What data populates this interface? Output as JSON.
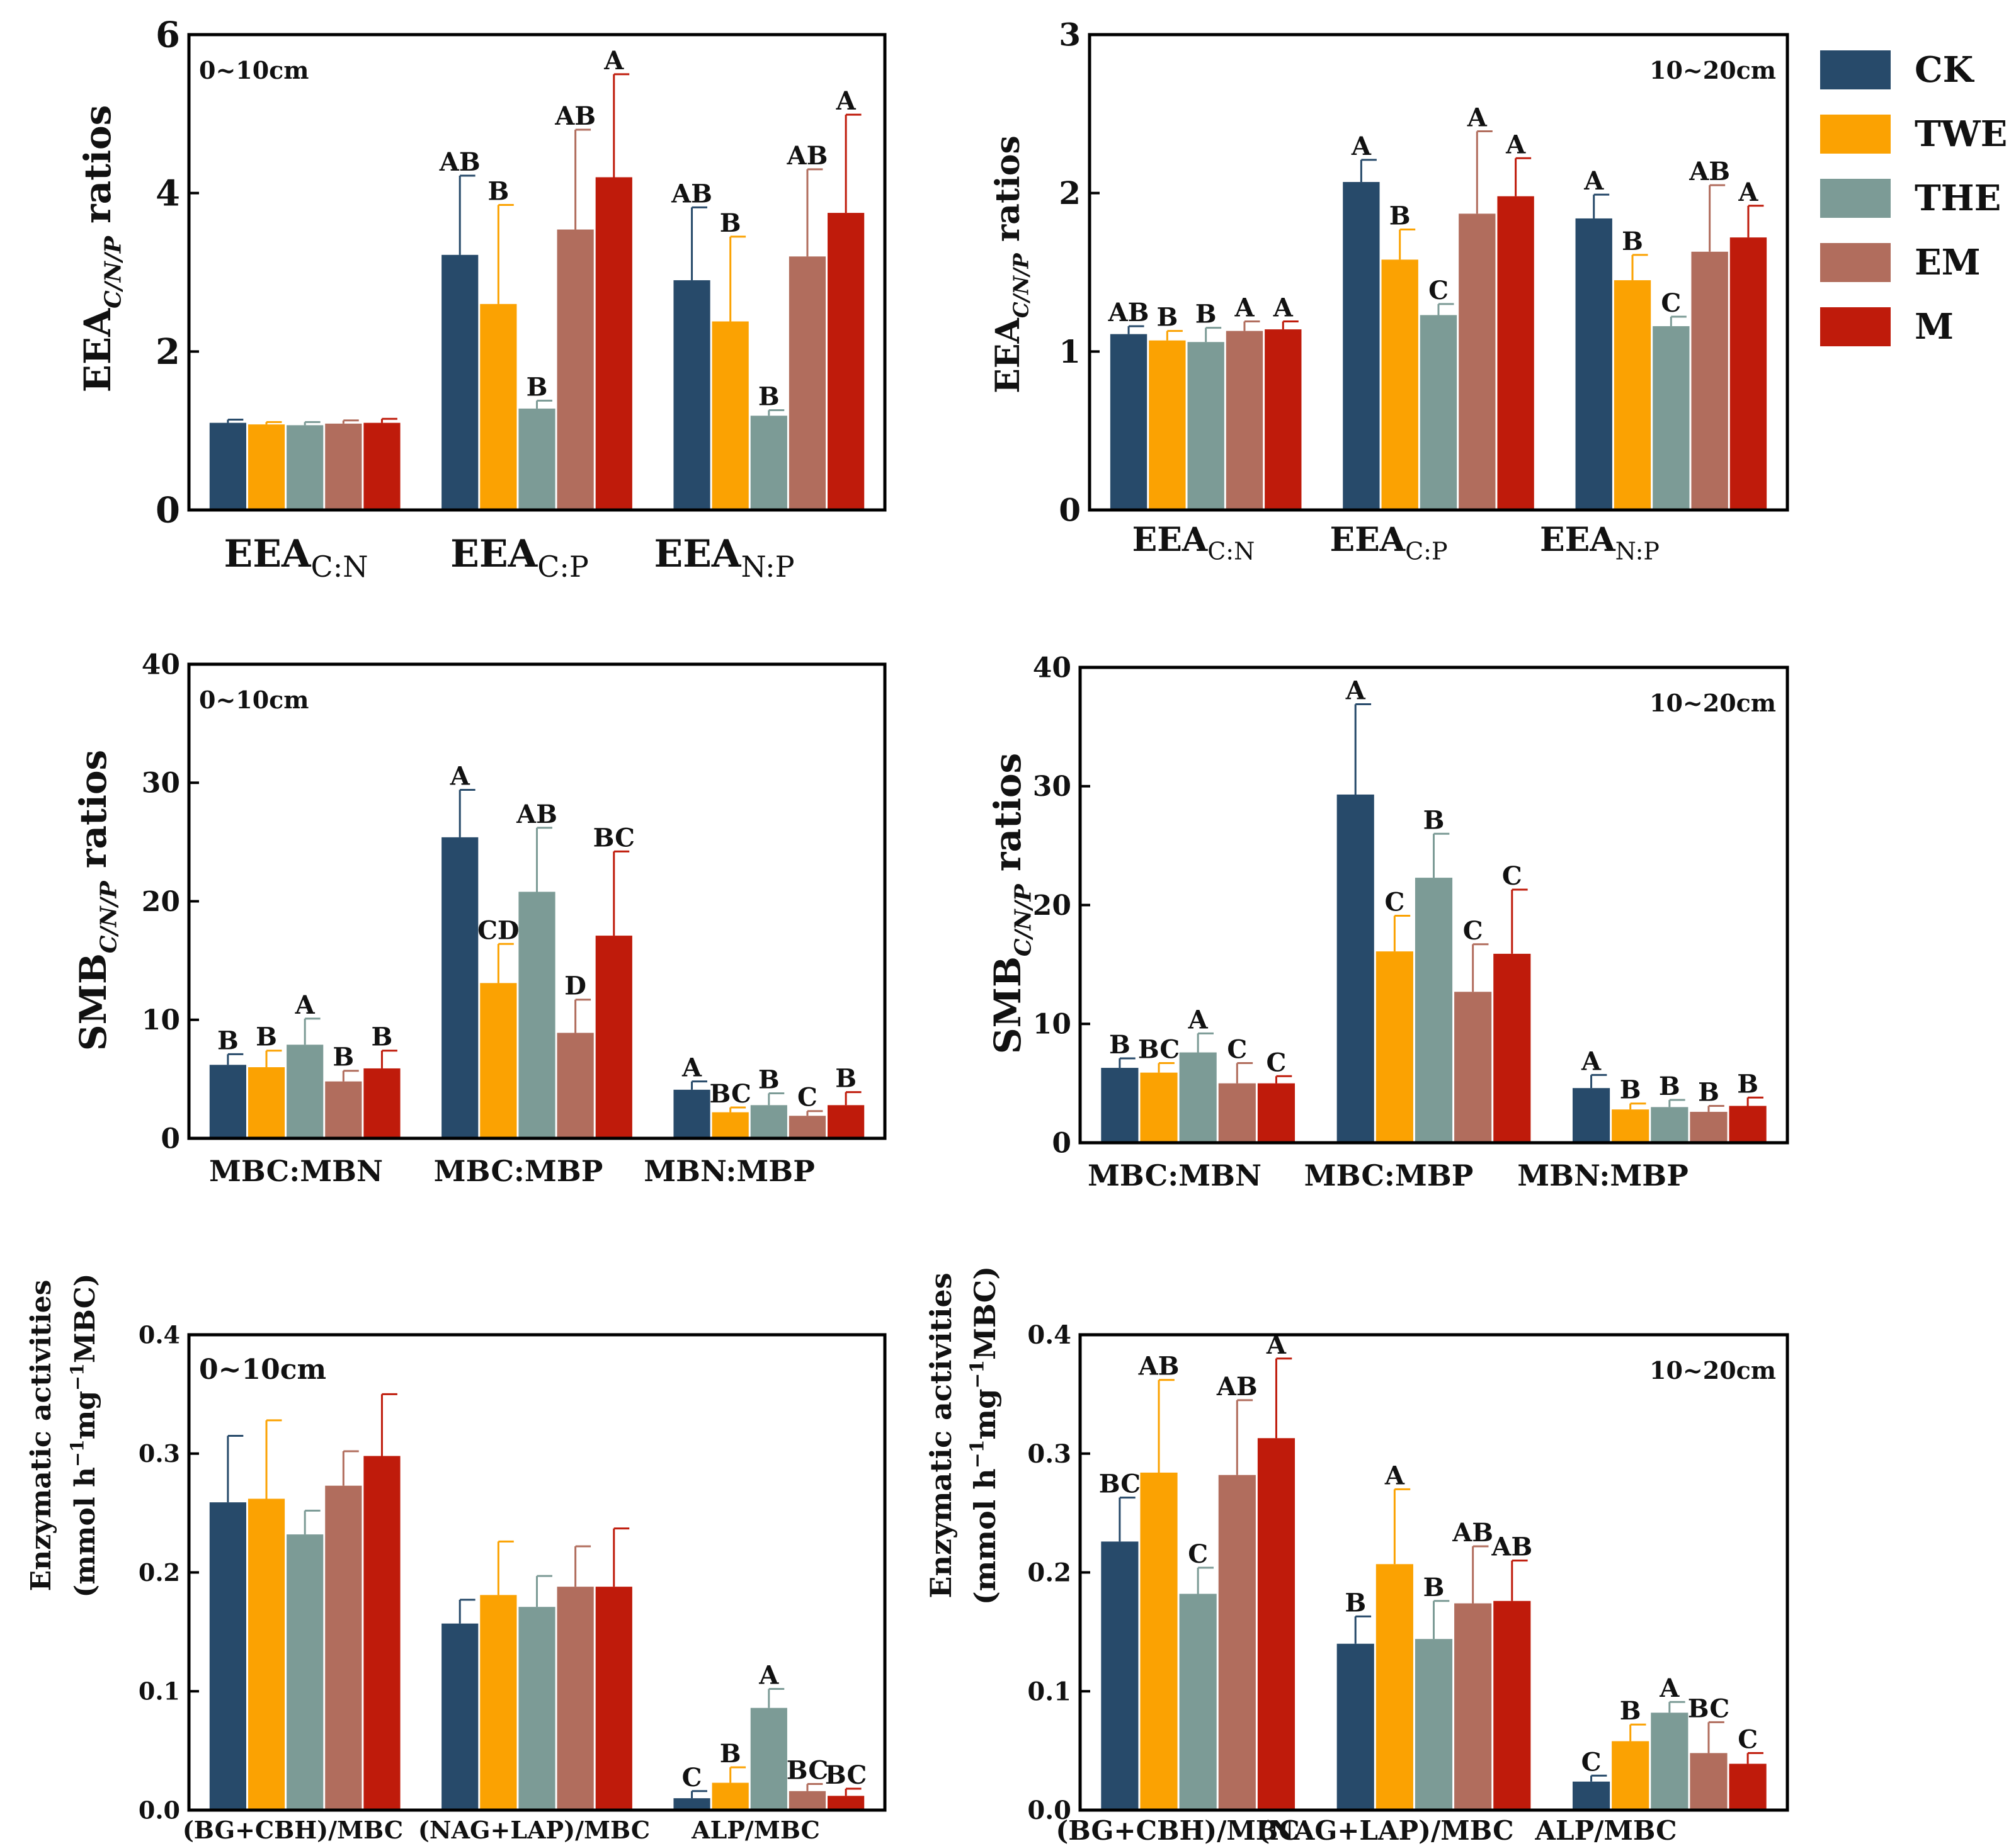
{
  "colors": [
    "#274a6a",
    "#fba202",
    "#7c9b96",
    "#b16d5d",
    "#bf1b0b"
  ],
  "legend": [
    "CK",
    "TWE",
    "THE",
    "EM",
    "M"
  ],
  "chart_data": [
    {
      "type": "bar",
      "title": "0~10cm",
      "ylim": [
        0,
        6
      ],
      "yticks": [
        0,
        2,
        4,
        6
      ],
      "ytick_labels": [
        "0",
        "2",
        "4",
        "6"
      ],
      "ylabel_main": "EEA",
      "ylabel_sub": "C/N/P",
      "ylabel_tail": " ratios",
      "categories": [
        {
          "main": "EEA",
          "sub": "C:N"
        },
        {
          "main": "EEA",
          "sub": "C:P"
        },
        {
          "main": "EEA",
          "sub": "N:P"
        }
      ],
      "series": [
        {
          "name": "CK",
          "values": [
            1.1,
            3.22,
            2.9
          ],
          "errors": [
            0.04,
            1.0,
            0.92
          ],
          "letters": [
            "",
            "AB",
            "AB"
          ]
        },
        {
          "name": "TWE",
          "values": [
            1.08,
            2.6,
            2.38
          ],
          "errors": [
            0.03,
            1.25,
            1.07
          ],
          "letters": [
            "",
            "B",
            "B"
          ]
        },
        {
          "name": "THE",
          "values": [
            1.07,
            1.28,
            1.19
          ],
          "errors": [
            0.04,
            0.1,
            0.07
          ],
          "letters": [
            "",
            "B",
            "B"
          ]
        },
        {
          "name": "EM",
          "values": [
            1.09,
            3.54,
            3.2
          ],
          "errors": [
            0.04,
            1.26,
            1.1
          ],
          "letters": [
            "",
            "AB",
            "AB"
          ]
        },
        {
          "name": "M",
          "values": [
            1.1,
            4.2,
            3.75
          ],
          "errors": [
            0.05,
            1.3,
            1.24
          ],
          "letters": [
            "",
            "A",
            "A"
          ]
        }
      ]
    },
    {
      "type": "bar",
      "title": "10~20cm",
      "ylim": [
        0,
        3
      ],
      "yticks": [
        0,
        1,
        2,
        3
      ],
      "ytick_labels": [
        "0",
        "1",
        "2",
        "3"
      ],
      "ylabel_main": "EEA",
      "ylabel_sub": "C/N/P",
      "ylabel_tail": " ratios",
      "categories": [
        {
          "main": "EEA",
          "sub": "C:N"
        },
        {
          "main": "EEA",
          "sub": "C:P"
        },
        {
          "main": "EEA",
          "sub": "N:P"
        }
      ],
      "series": [
        {
          "name": "CK",
          "values": [
            1.11,
            2.07,
            1.84
          ],
          "errors": [
            0.05,
            0.14,
            0.15
          ],
          "letters": [
            "AB",
            "A",
            "A"
          ]
        },
        {
          "name": "TWE",
          "values": [
            1.07,
            1.58,
            1.45
          ],
          "errors": [
            0.06,
            0.19,
            0.16
          ],
          "letters": [
            "B",
            "B",
            "B"
          ]
        },
        {
          "name": "THE",
          "values": [
            1.06,
            1.23,
            1.16
          ],
          "errors": [
            0.09,
            0.07,
            0.06
          ],
          "letters": [
            "B",
            "C",
            "C"
          ]
        },
        {
          "name": "EM",
          "values": [
            1.13,
            1.87,
            1.63
          ],
          "errors": [
            0.06,
            0.52,
            0.42
          ],
          "letters": [
            "A",
            "A",
            "AB"
          ]
        },
        {
          "name": "M",
          "values": [
            1.14,
            1.98,
            1.72
          ],
          "errors": [
            0.05,
            0.24,
            0.2
          ],
          "letters": [
            "A",
            "A",
            "A"
          ]
        }
      ]
    },
    {
      "type": "bar",
      "title": "0~10cm",
      "ylim": [
        0,
        40
      ],
      "yticks": [
        0,
        10,
        20,
        30,
        40
      ],
      "ytick_labels": [
        "0",
        "10",
        "20",
        "30",
        "40"
      ],
      "ylabel_main": "SMB",
      "ylabel_sub": "C/N/P",
      "ylabel_tail": " ratios",
      "categories": [
        {
          "main": "MBC:MBN",
          "sub": ""
        },
        {
          "main": "MBC:MBP",
          "sub": ""
        },
        {
          "main": "MBN:MBP",
          "sub": ""
        }
      ],
      "series": [
        {
          "name": "CK",
          "values": [
            6.2,
            25.4,
            4.1
          ],
          "errors": [
            0.9,
            4.0,
            0.7
          ],
          "letters": [
            "B",
            "A",
            "A"
          ]
        },
        {
          "name": "TWE",
          "values": [
            6.0,
            13.1,
            2.2
          ],
          "errors": [
            1.4,
            3.3,
            0.4
          ],
          "letters": [
            "B",
            "CD",
            "BC"
          ]
        },
        {
          "name": "THE",
          "values": [
            7.9,
            20.8,
            2.8
          ],
          "errors": [
            2.2,
            5.4,
            1.0
          ],
          "letters": [
            "A",
            "AB",
            "B"
          ]
        },
        {
          "name": "EM",
          "values": [
            4.8,
            8.9,
            1.9
          ],
          "errors": [
            0.9,
            2.8,
            0.4
          ],
          "letters": [
            "B",
            "D",
            "C"
          ]
        },
        {
          "name": "M",
          "values": [
            5.9,
            17.1,
            2.8
          ],
          "errors": [
            1.5,
            7.1,
            1.1
          ],
          "letters": [
            "B",
            "BC",
            "B"
          ]
        }
      ]
    },
    {
      "type": "bar",
      "title": "10~20cm",
      "ylim": [
        0,
        40
      ],
      "yticks": [
        0,
        10,
        20,
        30,
        40
      ],
      "ytick_labels": [
        "0",
        "10",
        "20",
        "30",
        "40"
      ],
      "ylabel_main": "SMB",
      "ylabel_sub": "C/N/P",
      "ylabel_tail": " ratios",
      "categories": [
        {
          "main": "MBC:MBN",
          "sub": ""
        },
        {
          "main": "MBC:MBP",
          "sub": ""
        },
        {
          "main": "MBN:MBP",
          "sub": ""
        }
      ],
      "series": [
        {
          "name": "CK",
          "values": [
            6.3,
            29.3,
            4.6
          ],
          "errors": [
            0.8,
            7.6,
            1.1
          ],
          "letters": [
            "B",
            "A",
            "A"
          ]
        },
        {
          "name": "TWE",
          "values": [
            5.9,
            16.1,
            2.8
          ],
          "errors": [
            0.8,
            3.0,
            0.5
          ],
          "letters": [
            "BC",
            "C",
            "B"
          ]
        },
        {
          "name": "THE",
          "values": [
            7.6,
            22.3,
            3.0
          ],
          "errors": [
            1.6,
            3.7,
            0.6
          ],
          "letters": [
            "A",
            "B",
            "B"
          ]
        },
        {
          "name": "EM",
          "values": [
            5.0,
            12.7,
            2.6
          ],
          "errors": [
            1.7,
            4.0,
            0.5
          ],
          "letters": [
            "C",
            "C",
            "B"
          ]
        },
        {
          "name": "M",
          "values": [
            5.0,
            15.9,
            3.1
          ],
          "errors": [
            0.6,
            5.4,
            0.7
          ],
          "letters": [
            "C",
            "C",
            "B"
          ]
        }
      ]
    },
    {
      "type": "bar",
      "title": "0~10cm",
      "ylim": [
        0,
        0.4
      ],
      "yticks": [
        0,
        0.1,
        0.2,
        0.3,
        0.4
      ],
      "ytick_labels": [
        "0.0",
        "0.1",
        "0.2",
        "0.3",
        "0.4"
      ],
      "ylabel_line1": "Enzymatic activities",
      "ylabel_line2_pre": "(mmol h",
      "ylabel_line2_sup": "−1",
      "ylabel_line2_mid": "mg",
      "ylabel_line2_sup2": "−1",
      "ylabel_line2_post": "MBC)",
      "categories": [
        {
          "main": "(BG+CBH)/MBC",
          "sub": ""
        },
        {
          "main": "(NAG+LAP)/MBC",
          "sub": ""
        },
        {
          "main": "ALP/MBC",
          "sub": ""
        }
      ],
      "series": [
        {
          "name": "CK",
          "values": [
            0.259,
            0.157,
            0.01
          ],
          "errors": [
            0.056,
            0.02,
            0.006
          ],
          "letters": [
            "",
            "",
            "C"
          ]
        },
        {
          "name": "TWE",
          "values": [
            0.262,
            0.181,
            0.023
          ],
          "errors": [
            0.066,
            0.045,
            0.013
          ],
          "letters": [
            "",
            "",
            "B"
          ]
        },
        {
          "name": "THE",
          "values": [
            0.232,
            0.171,
            0.086
          ],
          "errors": [
            0.02,
            0.026,
            0.016
          ],
          "letters": [
            "",
            "",
            "A"
          ]
        },
        {
          "name": "EM",
          "values": [
            0.273,
            0.188,
            0.016
          ],
          "errors": [
            0.029,
            0.034,
            0.006
          ],
          "letters": [
            "",
            "",
            "BC"
          ]
        },
        {
          "name": "M",
          "values": [
            0.298,
            0.188,
            0.012
          ],
          "errors": [
            0.052,
            0.049,
            0.006
          ],
          "letters": [
            "",
            "",
            "BC"
          ]
        }
      ]
    },
    {
      "type": "bar",
      "title": "10~20cm",
      "ylim": [
        0,
        0.4
      ],
      "yticks": [
        0,
        0.1,
        0.2,
        0.3,
        0.4
      ],
      "ytick_labels": [
        "0.0",
        "0.1",
        "0.2",
        "0.3",
        "0.4"
      ],
      "ylabel_line1": "Enzymatic activities",
      "ylabel_line2_pre": "(mmol h",
      "ylabel_line2_sup": "−1",
      "ylabel_line2_mid": "mg",
      "ylabel_line2_sup2": "−1",
      "ylabel_line2_post": "MBC)",
      "categories": [
        {
          "main": "(BG+CBH)/MBC",
          "sub": ""
        },
        {
          "main": "(NAG+LAP)/MBC",
          "sub": ""
        },
        {
          "main": "ALP/MBC",
          "sub": ""
        }
      ],
      "series": [
        {
          "name": "CK",
          "values": [
            0.226,
            0.14,
            0.024
          ],
          "errors": [
            0.037,
            0.023,
            0.005
          ],
          "letters": [
            "BC",
            "B",
            "C"
          ]
        },
        {
          "name": "TWE",
          "values": [
            0.284,
            0.207,
            0.058
          ],
          "errors": [
            0.078,
            0.063,
            0.014
          ],
          "letters": [
            "AB",
            "A",
            "B"
          ]
        },
        {
          "name": "THE",
          "values": [
            0.182,
            0.144,
            0.082
          ],
          "errors": [
            0.022,
            0.032,
            0.009
          ],
          "letters": [
            "C",
            "B",
            "A"
          ]
        },
        {
          "name": "EM",
          "values": [
            0.282,
            0.174,
            0.048
          ],
          "errors": [
            0.063,
            0.048,
            0.026
          ],
          "letters": [
            "AB",
            "AB",
            "BC"
          ]
        },
        {
          "name": "M",
          "values": [
            0.313,
            0.176,
            0.039
          ],
          "errors": [
            0.067,
            0.034,
            0.009
          ],
          "letters": [
            "A",
            "AB",
            "C"
          ]
        }
      ]
    }
  ]
}
